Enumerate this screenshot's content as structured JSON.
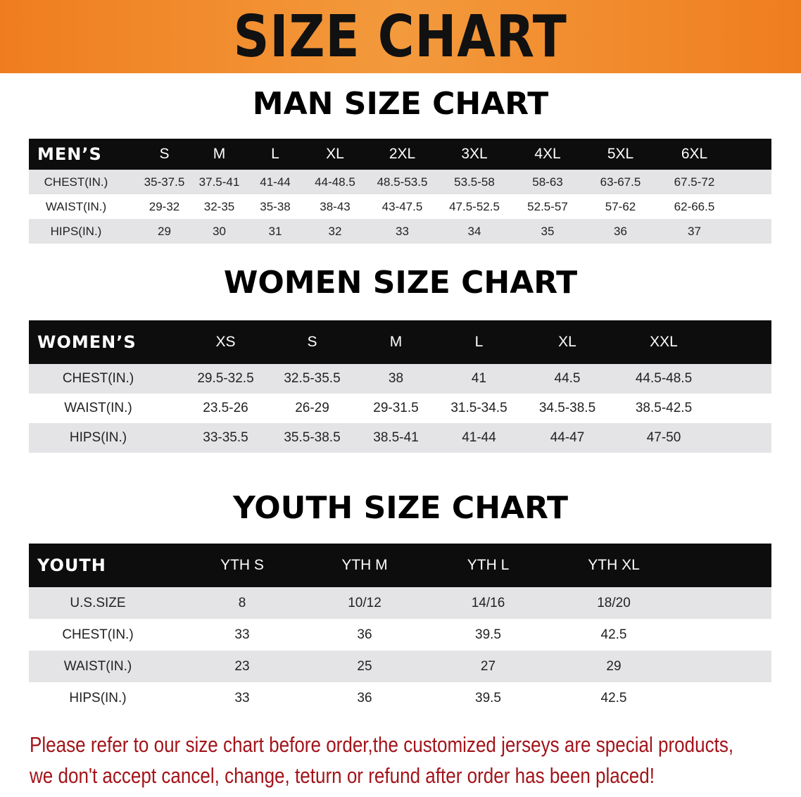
{
  "banner_title": "SIZE CHART",
  "men": {
    "title": "MAN SIZE CHART",
    "header": [
      "MEN’S",
      "S",
      "M",
      "L",
      "XL",
      "2XL",
      "3XL",
      "4XL",
      "5XL",
      "6XL"
    ],
    "rows": [
      [
        "CHEST(IN.)",
        "35-37.5",
        "37.5-41",
        "41-44",
        "44-48.5",
        "48.5-53.5",
        "53.5-58",
        "58-63",
        "63-67.5",
        "67.5-72"
      ],
      [
        "WAIST(IN.)",
        "29-32",
        "32-35",
        "35-38",
        "38-43",
        "43-47.5",
        "47.5-52.5",
        "52.5-57",
        "57-62",
        "62-66.5"
      ],
      [
        "HIPS(IN.)",
        "29",
        "30",
        "31",
        "32",
        "33",
        "34",
        "35",
        "36",
        "37"
      ]
    ]
  },
  "women": {
    "title": "WOMEN SIZE CHART",
    "header": [
      "WOMEN’S",
      "XS",
      "S",
      "M",
      "L",
      "XL",
      "XXL"
    ],
    "rows": [
      [
        "CHEST(IN.)",
        "29.5-32.5",
        "32.5-35.5",
        "38",
        "41",
        "44.5",
        "44.5-48.5"
      ],
      [
        "WAIST(IN.)",
        "23.5-26",
        "26-29",
        "29-31.5",
        "31.5-34.5",
        "34.5-38.5",
        "38.5-42.5"
      ],
      [
        "HIPS(IN.)",
        "33-35.5",
        "35.5-38.5",
        "38.5-41",
        "41-44",
        "44-47",
        "47-50"
      ]
    ]
  },
  "youth": {
    "title": "YOUTH SIZE CHART",
    "header": [
      "YOUTH",
      "YTH S",
      "YTH M",
      "YTH L",
      "YTH XL"
    ],
    "rows": [
      [
        "U.S.SIZE",
        "8",
        "10/12",
        "14/16",
        "18/20"
      ],
      [
        "CHEST(IN.)",
        "33",
        "36",
        "39.5",
        "42.5"
      ],
      [
        "WAIST(IN.)",
        "23",
        "25",
        "27",
        "29"
      ],
      [
        "HIPS(IN.)",
        "33",
        "36",
        "39.5",
        "42.5"
      ]
    ]
  },
  "note": {
    "line1": "Please refer to our size chart before order,the customized jerseys are special products,",
    "line2": "we don't accept cancel, change, teturn or refund after order has been placed!"
  },
  "colors": {
    "banner": "#ef7d1f",
    "header_row": "#0d0d0d",
    "stripe": "#e4e4e6",
    "note": "#a3141a"
  }
}
